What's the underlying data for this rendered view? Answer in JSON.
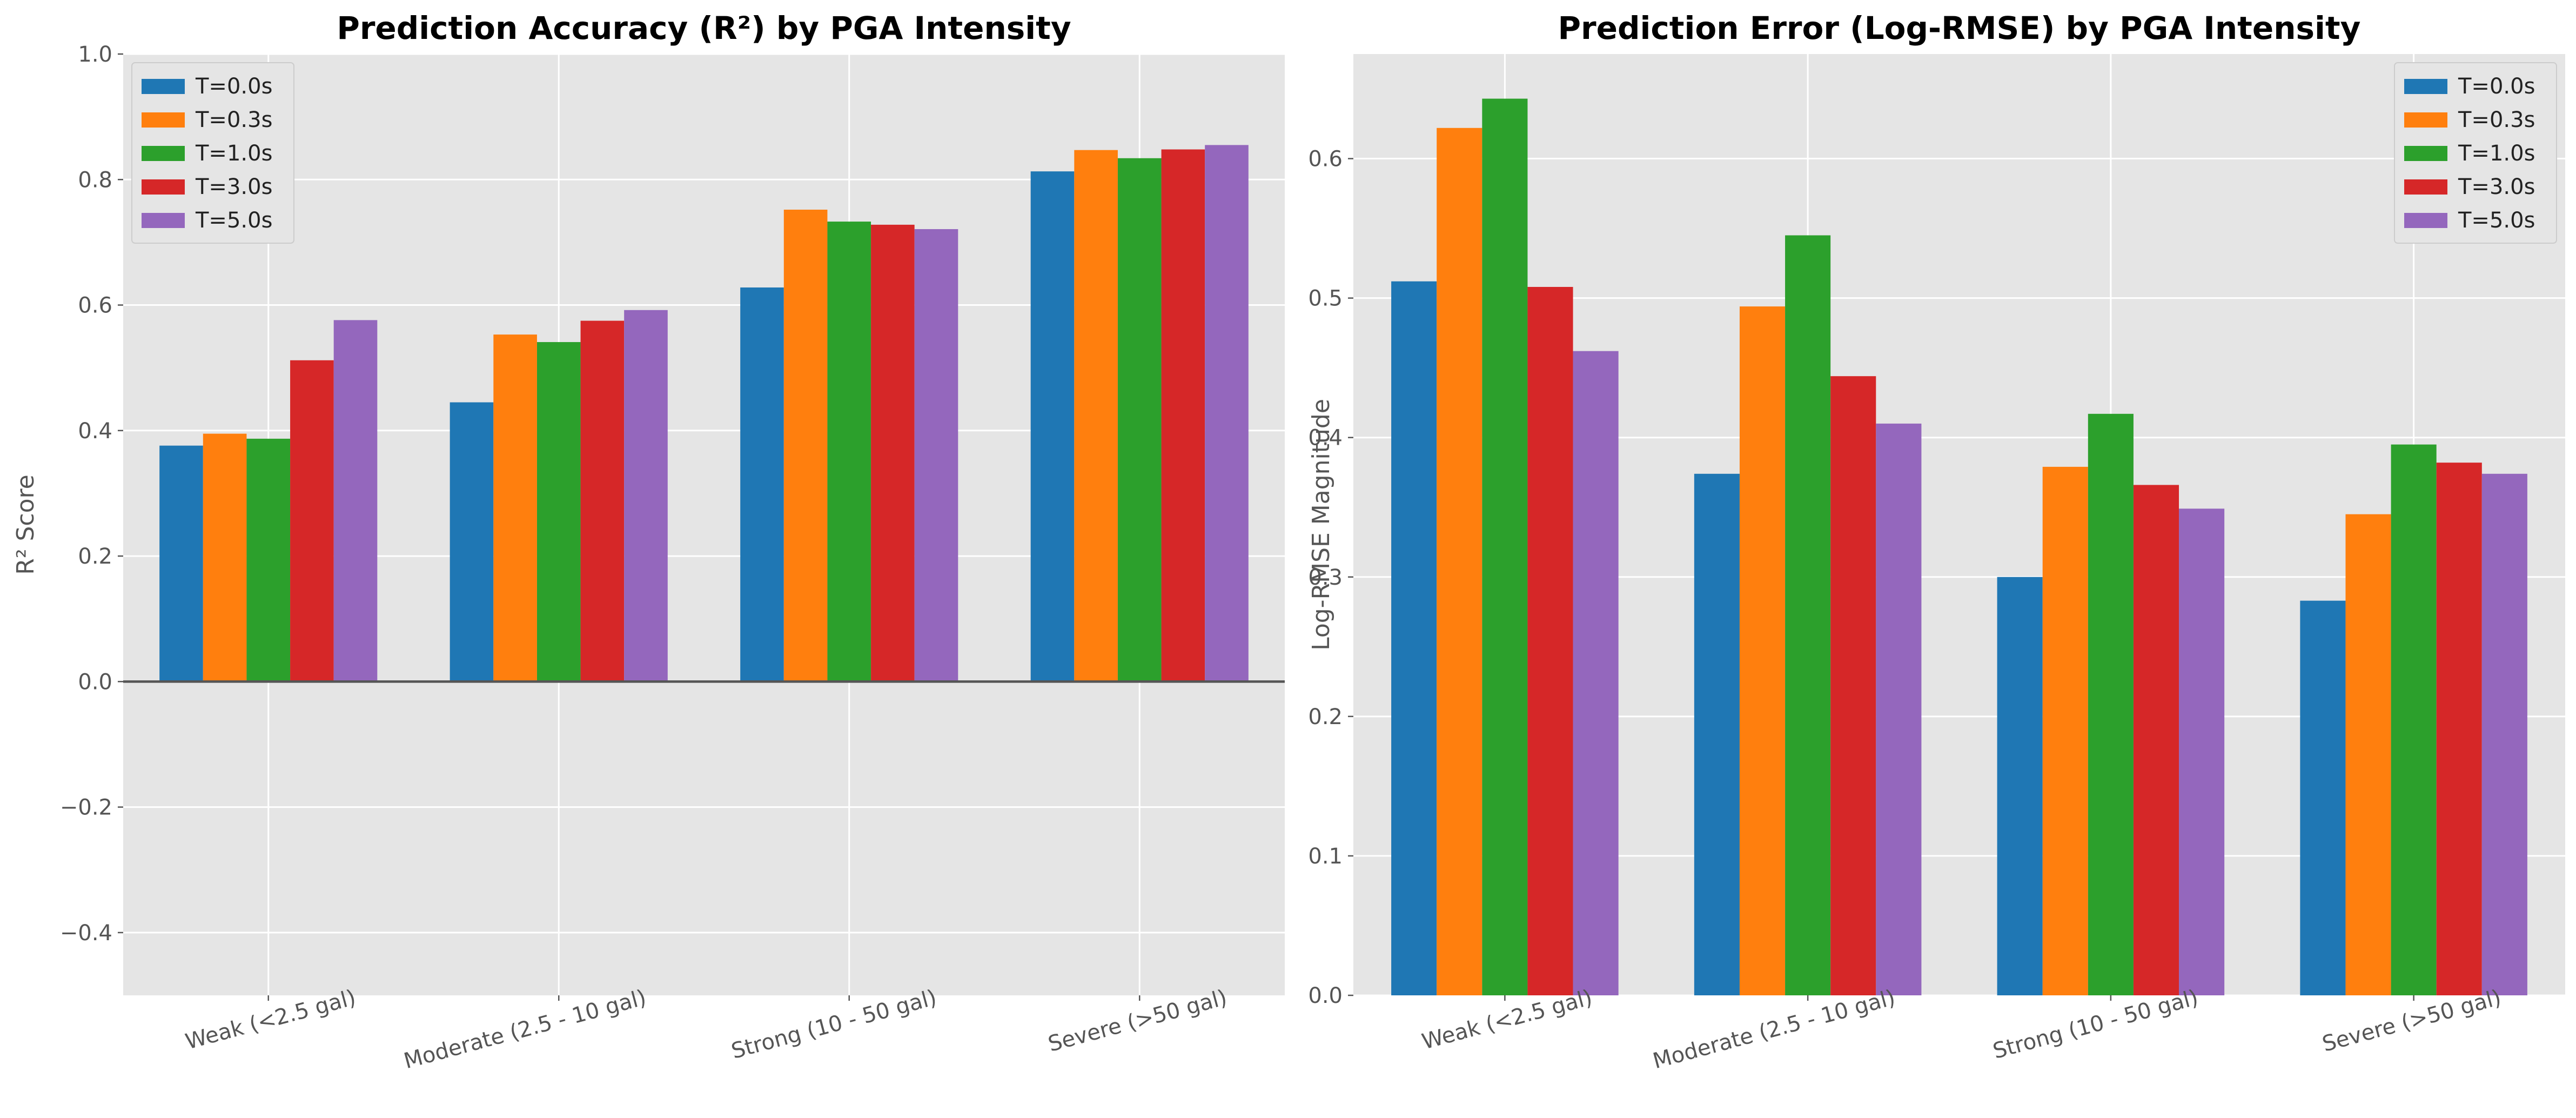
{
  "chart_data": [
    {
      "type": "bar",
      "title": "Prediction Accuracy (R²) by PGA Intensity",
      "ylabel": "R² Score",
      "xlabel": "",
      "categories": [
        "Weak (<2.5 gal)",
        "Moderate (2.5 - 10 gal)",
        "Strong (10 - 50 gal)",
        "Severe (>50 gal)"
      ],
      "series": [
        {
          "name": "T=0.0s",
          "color": "#1f77b4",
          "values": [
            0.376,
            0.445,
            0.628,
            0.813
          ]
        },
        {
          "name": "T=0.3s",
          "color": "#ff7f0e",
          "values": [
            0.395,
            0.553,
            0.752,
            0.847
          ]
        },
        {
          "name": "T=1.0s",
          "color": "#2ca02c",
          "values": [
            0.387,
            0.541,
            0.733,
            0.834
          ]
        },
        {
          "name": "T=3.0s",
          "color": "#d62728",
          "values": [
            0.512,
            0.575,
            0.728,
            0.848
          ]
        },
        {
          "name": "T=5.0s",
          "color": "#9467bd",
          "values": [
            0.576,
            0.592,
            0.721,
            0.855
          ]
        }
      ],
      "ylim": [
        -0.5,
        1.0
      ],
      "yticks": [
        -0.4,
        -0.2,
        0.0,
        0.2,
        0.4,
        0.6,
        0.8,
        1.0
      ],
      "ytick_labels": [
        "−0.4",
        "−0.2",
        "0.0",
        "0.2",
        "0.4",
        "0.6",
        "0.8",
        "1.0"
      ],
      "zero_line": true,
      "grid": true,
      "legend_position": "top-left"
    },
    {
      "type": "bar",
      "title": "Prediction Error (Log-RMSE) by PGA Intensity",
      "ylabel": "Log-RMSE Magnitude",
      "xlabel": "",
      "categories": [
        "Weak (<2.5 gal)",
        "Moderate (2.5 - 10 gal)",
        "Strong (10 - 50 gal)",
        "Severe (>50 gal)"
      ],
      "series": [
        {
          "name": "T=0.0s",
          "color": "#1f77b4",
          "values": [
            0.512,
            0.374,
            0.3,
            0.283
          ]
        },
        {
          "name": "T=0.3s",
          "color": "#ff7f0e",
          "values": [
            0.622,
            0.494,
            0.379,
            0.345
          ]
        },
        {
          "name": "T=1.0s",
          "color": "#2ca02c",
          "values": [
            0.643,
            0.545,
            0.417,
            0.395
          ]
        },
        {
          "name": "T=3.0s",
          "color": "#d62728",
          "values": [
            0.508,
            0.444,
            0.366,
            0.382
          ]
        },
        {
          "name": "T=5.0s",
          "color": "#9467bd",
          "values": [
            0.462,
            0.41,
            0.349,
            0.374
          ]
        }
      ],
      "ylim": [
        0.0,
        0.675
      ],
      "yticks": [
        0.0,
        0.1,
        0.2,
        0.3,
        0.4,
        0.5,
        0.6
      ],
      "ytick_labels": [
        "0.0",
        "0.1",
        "0.2",
        "0.3",
        "0.4",
        "0.5",
        "0.6"
      ],
      "zero_line": false,
      "grid": true,
      "legend_position": "top-right"
    }
  ]
}
